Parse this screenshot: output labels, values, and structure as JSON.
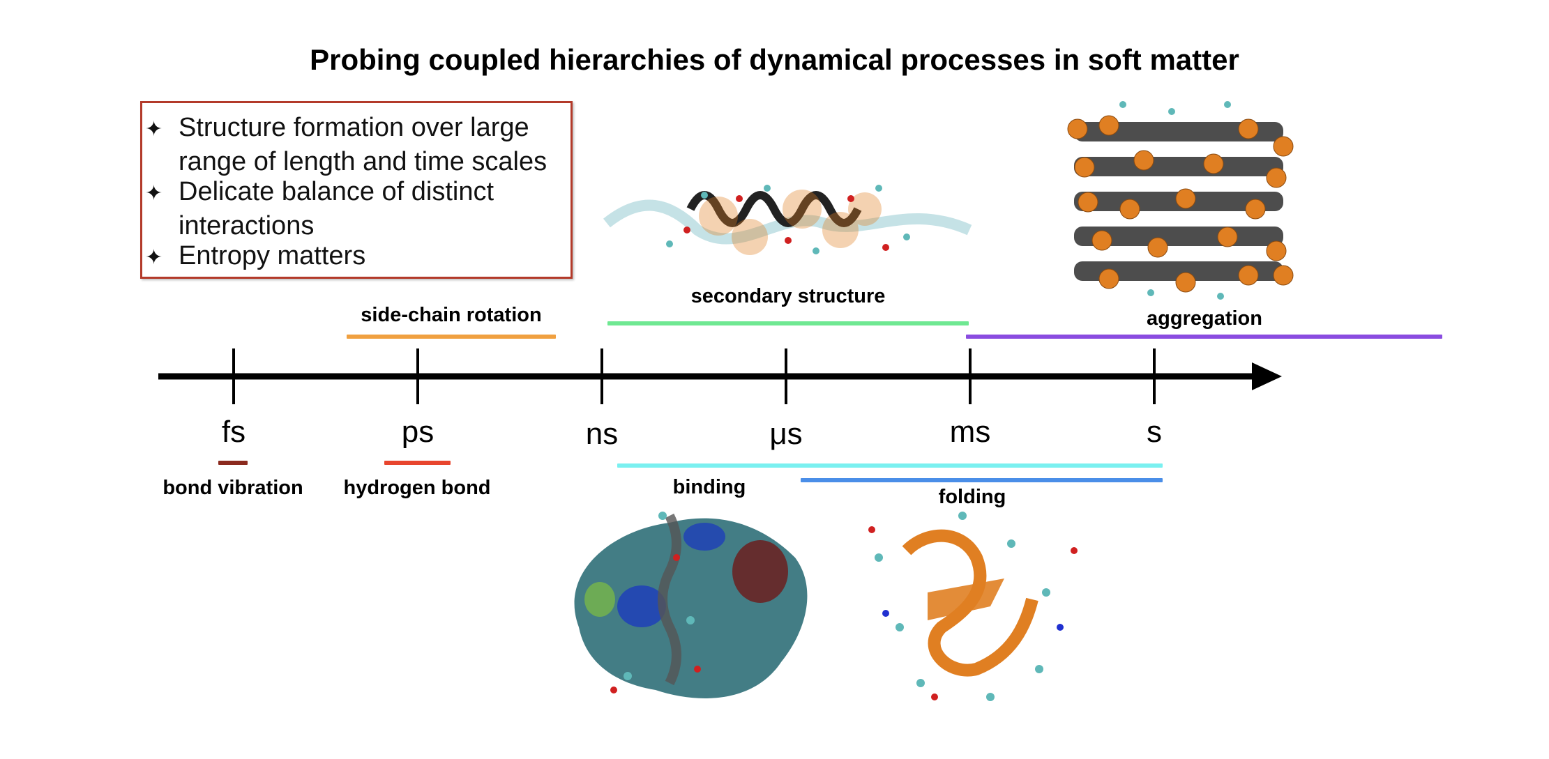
{
  "title": "Probing coupled hierarchies of dynamical processes in soft matter",
  "bullets": [
    {
      "icon": "star-icon",
      "lines": [
        "Structure formation over large",
        "range of length and time scales"
      ]
    },
    {
      "icon": "star-icon",
      "lines": [
        "Delicate balance of distinct",
        "interactions"
      ]
    },
    {
      "icon": "star-icon",
      "lines": [
        "Entropy matters"
      ]
    }
  ],
  "timescale_units": [
    "fs",
    "ps",
    "ns",
    "μs",
    "ms",
    "s"
  ],
  "processes": {
    "bond_vibration": {
      "label": "bond vibration",
      "color": "#8b2a1e"
    },
    "hydrogen_bond": {
      "label": "hydrogen bond",
      "color": "#e8452e"
    },
    "side_chain_rotation": {
      "label": "side-chain rotation",
      "color": "#f0a040"
    },
    "secondary_structure": {
      "label": "secondary structure",
      "color": "#6fe892"
    },
    "aggregation": {
      "label": "aggregation",
      "color": "#8a4ce0"
    },
    "binding": {
      "label": "binding",
      "color": "#7af0f0"
    },
    "folding": {
      "label": "folding",
      "color": "#4a8ee8"
    }
  },
  "colors": {
    "box_border": "#b33a2a",
    "axis": "#000000",
    "molecule_orange": "#e07f22",
    "molecule_cyan": "#5fb8b8"
  }
}
